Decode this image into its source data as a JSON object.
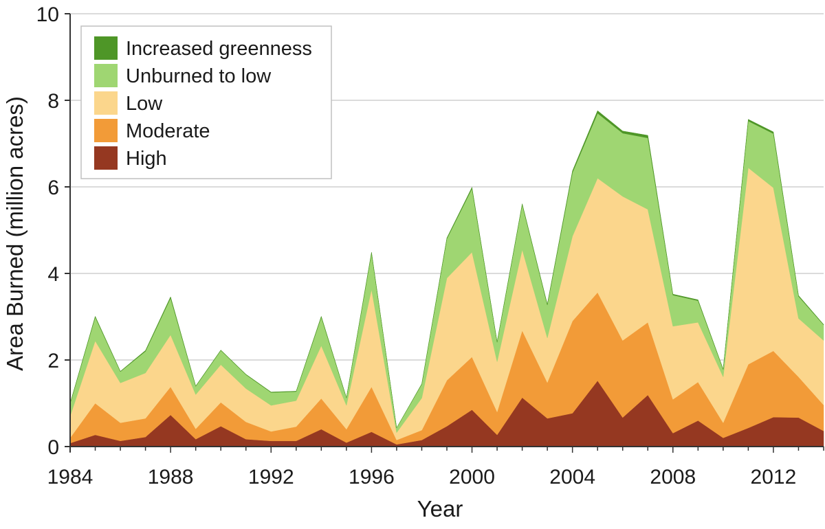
{
  "chart_data": {
    "type": "area",
    "stacked": true,
    "title": "",
    "xlabel": "Year",
    "ylabel": "Area Burned (million acres)",
    "xlim": [
      1984,
      2014
    ],
    "ylim": [
      0,
      10
    ],
    "x_ticks": [
      1984,
      1988,
      1992,
      1996,
      2000,
      2004,
      2008,
      2012
    ],
    "y_ticks": [
      0,
      2,
      4,
      6,
      8,
      10
    ],
    "grid": "horizontal",
    "legend_position": "top-left",
    "x": [
      1984,
      1985,
      1986,
      1987,
      1988,
      1989,
      1990,
      1991,
      1992,
      1993,
      1994,
      1995,
      1996,
      1997,
      1998,
      1999,
      2000,
      2001,
      2002,
      2003,
      2004,
      2005,
      2006,
      2007,
      2008,
      2009,
      2010,
      2011,
      2012,
      2013,
      2014
    ],
    "series": [
      {
        "name": "High",
        "color": "#953821",
        "values": [
          0.08,
          0.27,
          0.13,
          0.22,
          0.73,
          0.17,
          0.47,
          0.17,
          0.13,
          0.13,
          0.4,
          0.09,
          0.34,
          0.05,
          0.15,
          0.47,
          0.85,
          0.27,
          1.13,
          0.65,
          0.77,
          1.52,
          0.67,
          1.19,
          0.31,
          0.6,
          0.2,
          0.43,
          0.68,
          0.67,
          0.36
        ]
      },
      {
        "name": "Moderate",
        "color": "#f29b38",
        "values": [
          0.12,
          0.73,
          0.42,
          0.43,
          0.65,
          0.24,
          0.55,
          0.4,
          0.22,
          0.33,
          0.71,
          0.31,
          1.04,
          0.1,
          0.23,
          1.06,
          1.22,
          0.53,
          1.55,
          0.83,
          2.13,
          2.04,
          1.78,
          1.68,
          0.78,
          0.89,
          0.35,
          1.47,
          1.53,
          0.94,
          0.6
        ]
      },
      {
        "name": "Low",
        "color": "#fbd68c",
        "values": [
          0.5,
          1.44,
          0.92,
          1.05,
          1.2,
          0.79,
          0.87,
          0.77,
          0.6,
          0.6,
          1.22,
          0.55,
          2.25,
          0.17,
          0.74,
          2.36,
          2.42,
          1.16,
          1.87,
          1.03,
          1.96,
          2.64,
          3.33,
          2.61,
          1.69,
          1.38,
          1.06,
          4.54,
          3.77,
          1.35,
          1.49
        ]
      },
      {
        "name": "Unburned to low",
        "color": "#9fd672",
        "values": [
          0.29,
          0.55,
          0.26,
          0.5,
          0.85,
          0.19,
          0.33,
          0.32,
          0.3,
          0.21,
          0.66,
          0.17,
          0.84,
          0.11,
          0.32,
          0.91,
          1.47,
          0.45,
          1.04,
          0.76,
          1.47,
          1.5,
          1.46,
          1.65,
          0.72,
          0.5,
          0.17,
          1.08,
          1.25,
          0.51,
          0.36
        ]
      },
      {
        "name": "Increased greenness",
        "color": "#4e9627",
        "values": [
          0.01,
          0.02,
          0.01,
          0.02,
          0.03,
          0.01,
          0.01,
          0.01,
          0.01,
          0.01,
          0.02,
          0.01,
          0.02,
          0.0,
          0.01,
          0.02,
          0.03,
          0.01,
          0.02,
          0.02,
          0.04,
          0.06,
          0.05,
          0.06,
          0.02,
          0.02,
          0.01,
          0.04,
          0.04,
          0.02,
          0.01
        ]
      }
    ]
  }
}
